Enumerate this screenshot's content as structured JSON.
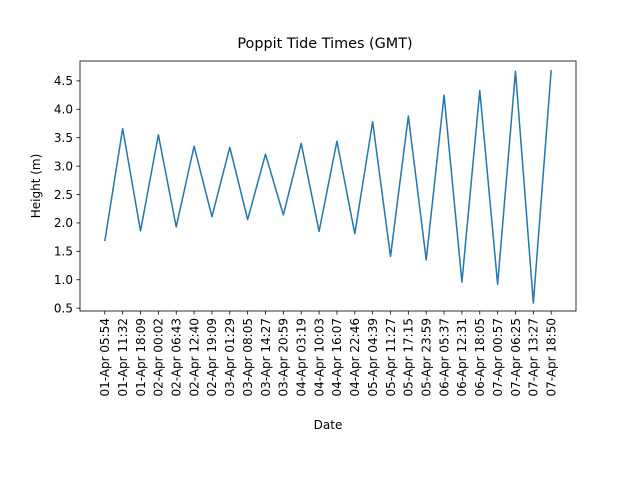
{
  "chart_data": {
    "type": "line",
    "title": "Poppit Tide Times (GMT)",
    "xlabel": "Date",
    "ylabel": "Height (m)",
    "ylim": [
      0.45,
      4.85
    ],
    "yticks": [
      "0.5",
      "1.0",
      "1.5",
      "2.0",
      "2.5",
      "3.0",
      "3.5",
      "4.0",
      "4.5"
    ],
    "grid": false,
    "line_color": "#1f77b4",
    "categories": [
      "01-Apr 05:54",
      "01-Apr 11:32",
      "01-Apr 18:09",
      "02-Apr 00:02",
      "02-Apr 06:43",
      "02-Apr 12:40",
      "02-Apr 19:09",
      "03-Apr 01:29",
      "03-Apr 08:05",
      "03-Apr 14:27",
      "03-Apr 20:59",
      "04-Apr 03:19",
      "04-Apr 10:03",
      "04-Apr 16:07",
      "04-Apr 22:46",
      "05-Apr 04:39",
      "05-Apr 11:27",
      "05-Apr 17:15",
      "05-Apr 23:59",
      "06-Apr 05:37",
      "06-Apr 12:31",
      "06-Apr 18:05",
      "07-Apr 00:57",
      "07-Apr 06:25",
      "07-Apr 13:27",
      "07-Apr 18:50"
    ],
    "series": [
      {
        "values": [
          1.68,
          3.66,
          1.86,
          3.55,
          1.93,
          3.35,
          2.11,
          3.33,
          2.06,
          3.21,
          2.14,
          3.4,
          1.85,
          3.44,
          1.81,
          3.78,
          1.41,
          3.88,
          1.35,
          4.25,
          0.96,
          4.33,
          0.92,
          4.67,
          0.59,
          4.69
        ]
      }
    ]
  }
}
